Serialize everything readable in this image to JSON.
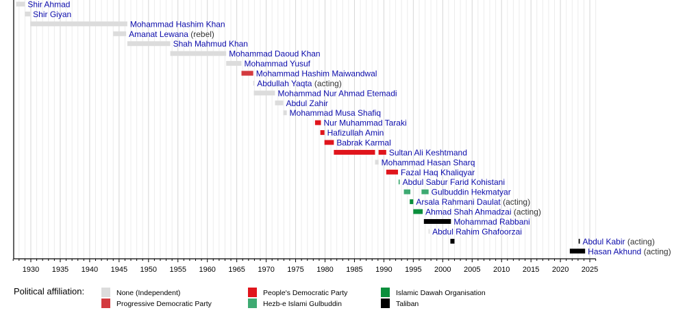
{
  "chart_data": {
    "type": "timeline",
    "title": "",
    "xlabel": "",
    "ylabel": "",
    "xlim": [
      1927,
      2026
    ],
    "x_ticks": [
      1930,
      1935,
      1940,
      1945,
      1950,
      1955,
      1960,
      1965,
      1970,
      1975,
      1980,
      1985,
      1990,
      1995,
      2000,
      2005,
      2010,
      2015,
      2020,
      2025
    ],
    "grid": "vertical, yearly",
    "colors": {
      "none": "#dcdcdc",
      "progressive": "#d33a3f",
      "pdpa": "#e0151c",
      "hezb": "#3eaa72",
      "dawah": "#0a8f3c",
      "taliban": "#000000",
      "link": "#0b0bab",
      "note": "#333333"
    },
    "rows": [
      {
        "name": "Shir Ahmad",
        "note": "",
        "segments": [
          {
            "start": 1927.5,
            "end": 1929.0,
            "party": "none"
          }
        ]
      },
      {
        "name": "Shir Giyan",
        "note": "",
        "segments": [
          {
            "start": 1929.0,
            "end": 1929.9,
            "party": "none"
          }
        ]
      },
      {
        "name": "Mohammad Hashim Khan",
        "note": "",
        "segments": [
          {
            "start": 1929.9,
            "end": 1946.4,
            "party": "none"
          }
        ]
      },
      {
        "name": "Amanat Lewana",
        "note": "(rebel)",
        "segments": [
          {
            "start": 1944.0,
            "end": 1946.2,
            "party": "none"
          }
        ]
      },
      {
        "name": "Shah Mahmud Khan",
        "note": "",
        "segments": [
          {
            "start": 1946.4,
            "end": 1953.7,
            "party": "none"
          }
        ]
      },
      {
        "name": "Mohammad Daoud Khan",
        "note": "",
        "segments": [
          {
            "start": 1953.7,
            "end": 1963.2,
            "party": "none"
          }
        ]
      },
      {
        "name": "Mohammad Yusuf",
        "note": "",
        "segments": [
          {
            "start": 1963.2,
            "end": 1965.8,
            "party": "none"
          }
        ]
      },
      {
        "name": "Mohammad Hashim Maiwandwal",
        "note": "",
        "segments": [
          {
            "start": 1965.8,
            "end": 1967.8,
            "party": "progressive"
          }
        ]
      },
      {
        "name": "Abdullah Yaqta",
        "note": "(acting)",
        "segments": [
          {
            "start": 1967.8,
            "end": 1967.9,
            "party": "none"
          }
        ]
      },
      {
        "name": "Mohammad Nur Ahmad Etemadi",
        "note": "",
        "segments": [
          {
            "start": 1967.9,
            "end": 1971.5,
            "party": "none"
          }
        ]
      },
      {
        "name": "Abdul Zahir",
        "note": "",
        "segments": [
          {
            "start": 1971.5,
            "end": 1972.9,
            "party": "none"
          }
        ]
      },
      {
        "name": "Mohammad Musa Shafiq",
        "note": "",
        "segments": [
          {
            "start": 1972.9,
            "end": 1973.5,
            "party": "none"
          }
        ]
      },
      {
        "name": "Nur Muhammad Taraki",
        "note": "",
        "segments": [
          {
            "start": 1978.3,
            "end": 1979.3,
            "party": "pdpa"
          }
        ]
      },
      {
        "name": "Hafizullah Amin",
        "note": "",
        "segments": [
          {
            "start": 1979.2,
            "end": 1979.9,
            "party": "pdpa"
          }
        ]
      },
      {
        "name": "Babrak Karmal",
        "note": "",
        "segments": [
          {
            "start": 1979.9,
            "end": 1981.5,
            "party": "pdpa"
          }
        ]
      },
      {
        "name": "Sultan Ali Keshtmand",
        "note": "",
        "segments": [
          {
            "start": 1981.5,
            "end": 1988.5,
            "party": "pdpa"
          },
          {
            "start": 1989.1,
            "end": 1990.4,
            "party": "pdpa"
          }
        ]
      },
      {
        "name": "Mohammad Hasan Sharq",
        "note": "",
        "segments": [
          {
            "start": 1988.5,
            "end": 1989.1,
            "party": "none"
          }
        ]
      },
      {
        "name": "Fazal Haq Khaliqyar",
        "note": "",
        "segments": [
          {
            "start": 1990.4,
            "end": 1992.4,
            "party": "pdpa"
          }
        ]
      },
      {
        "name": "Abdul Sabur Farid Kohistani",
        "note": "",
        "segments": [
          {
            "start": 1992.5,
            "end": 1992.7,
            "party": "hezb"
          }
        ]
      },
      {
        "name": "Gulbuddin Hekmatyar",
        "note": "",
        "segments": [
          {
            "start": 1993.4,
            "end": 1994.5,
            "party": "hezb"
          },
          {
            "start": 1996.4,
            "end": 1997.6,
            "party": "hezb"
          }
        ]
      },
      {
        "name": "Arsala Rahmani Daulat",
        "note": "(acting)",
        "segments": [
          {
            "start": 1994.4,
            "end": 1995.0,
            "party": "dawah"
          }
        ]
      },
      {
        "name": "Ahmad Shah Ahmadzai",
        "note": "(acting)",
        "segments": [
          {
            "start": 1995.0,
            "end": 1996.6,
            "party": "dawah"
          }
        ]
      },
      {
        "name": "Mohammad Rabbani",
        "note": "",
        "segments": [
          {
            "start": 1996.8,
            "end": 2001.4,
            "party": "taliban"
          }
        ]
      },
      {
        "name": "Abdul Rahim Ghafoorzai",
        "note": "",
        "segments": [
          {
            "start": 1997.6,
            "end": 1997.7,
            "party": "none"
          }
        ]
      },
      {
        "name": "Abdul Kabir",
        "note": "(acting)",
        "segments": [
          {
            "start": 2001.3,
            "end": 2002.0,
            "party": "taliban"
          },
          {
            "start": 2023.1,
            "end": 2023.3,
            "party": "taliban"
          }
        ]
      },
      {
        "name": "Hasan Akhund",
        "note": "(acting)",
        "segments": [
          {
            "start": 2021.6,
            "end": 2024.2,
            "party": "taliban"
          }
        ]
      }
    ]
  },
  "legend": {
    "title": "Political affiliation:",
    "items": [
      {
        "key": "none",
        "label": "None (Independent)"
      },
      {
        "key": "progressive",
        "label": "Progressive Democratic Party"
      },
      {
        "key": "pdpa",
        "label": "People's Democratic Party"
      },
      {
        "key": "hezb",
        "label": "Hezb-e Islami Gulbuddin"
      },
      {
        "key": "dawah",
        "label": "Islamic Dawah Organisation"
      },
      {
        "key": "taliban",
        "label": "Taliban"
      }
    ]
  }
}
